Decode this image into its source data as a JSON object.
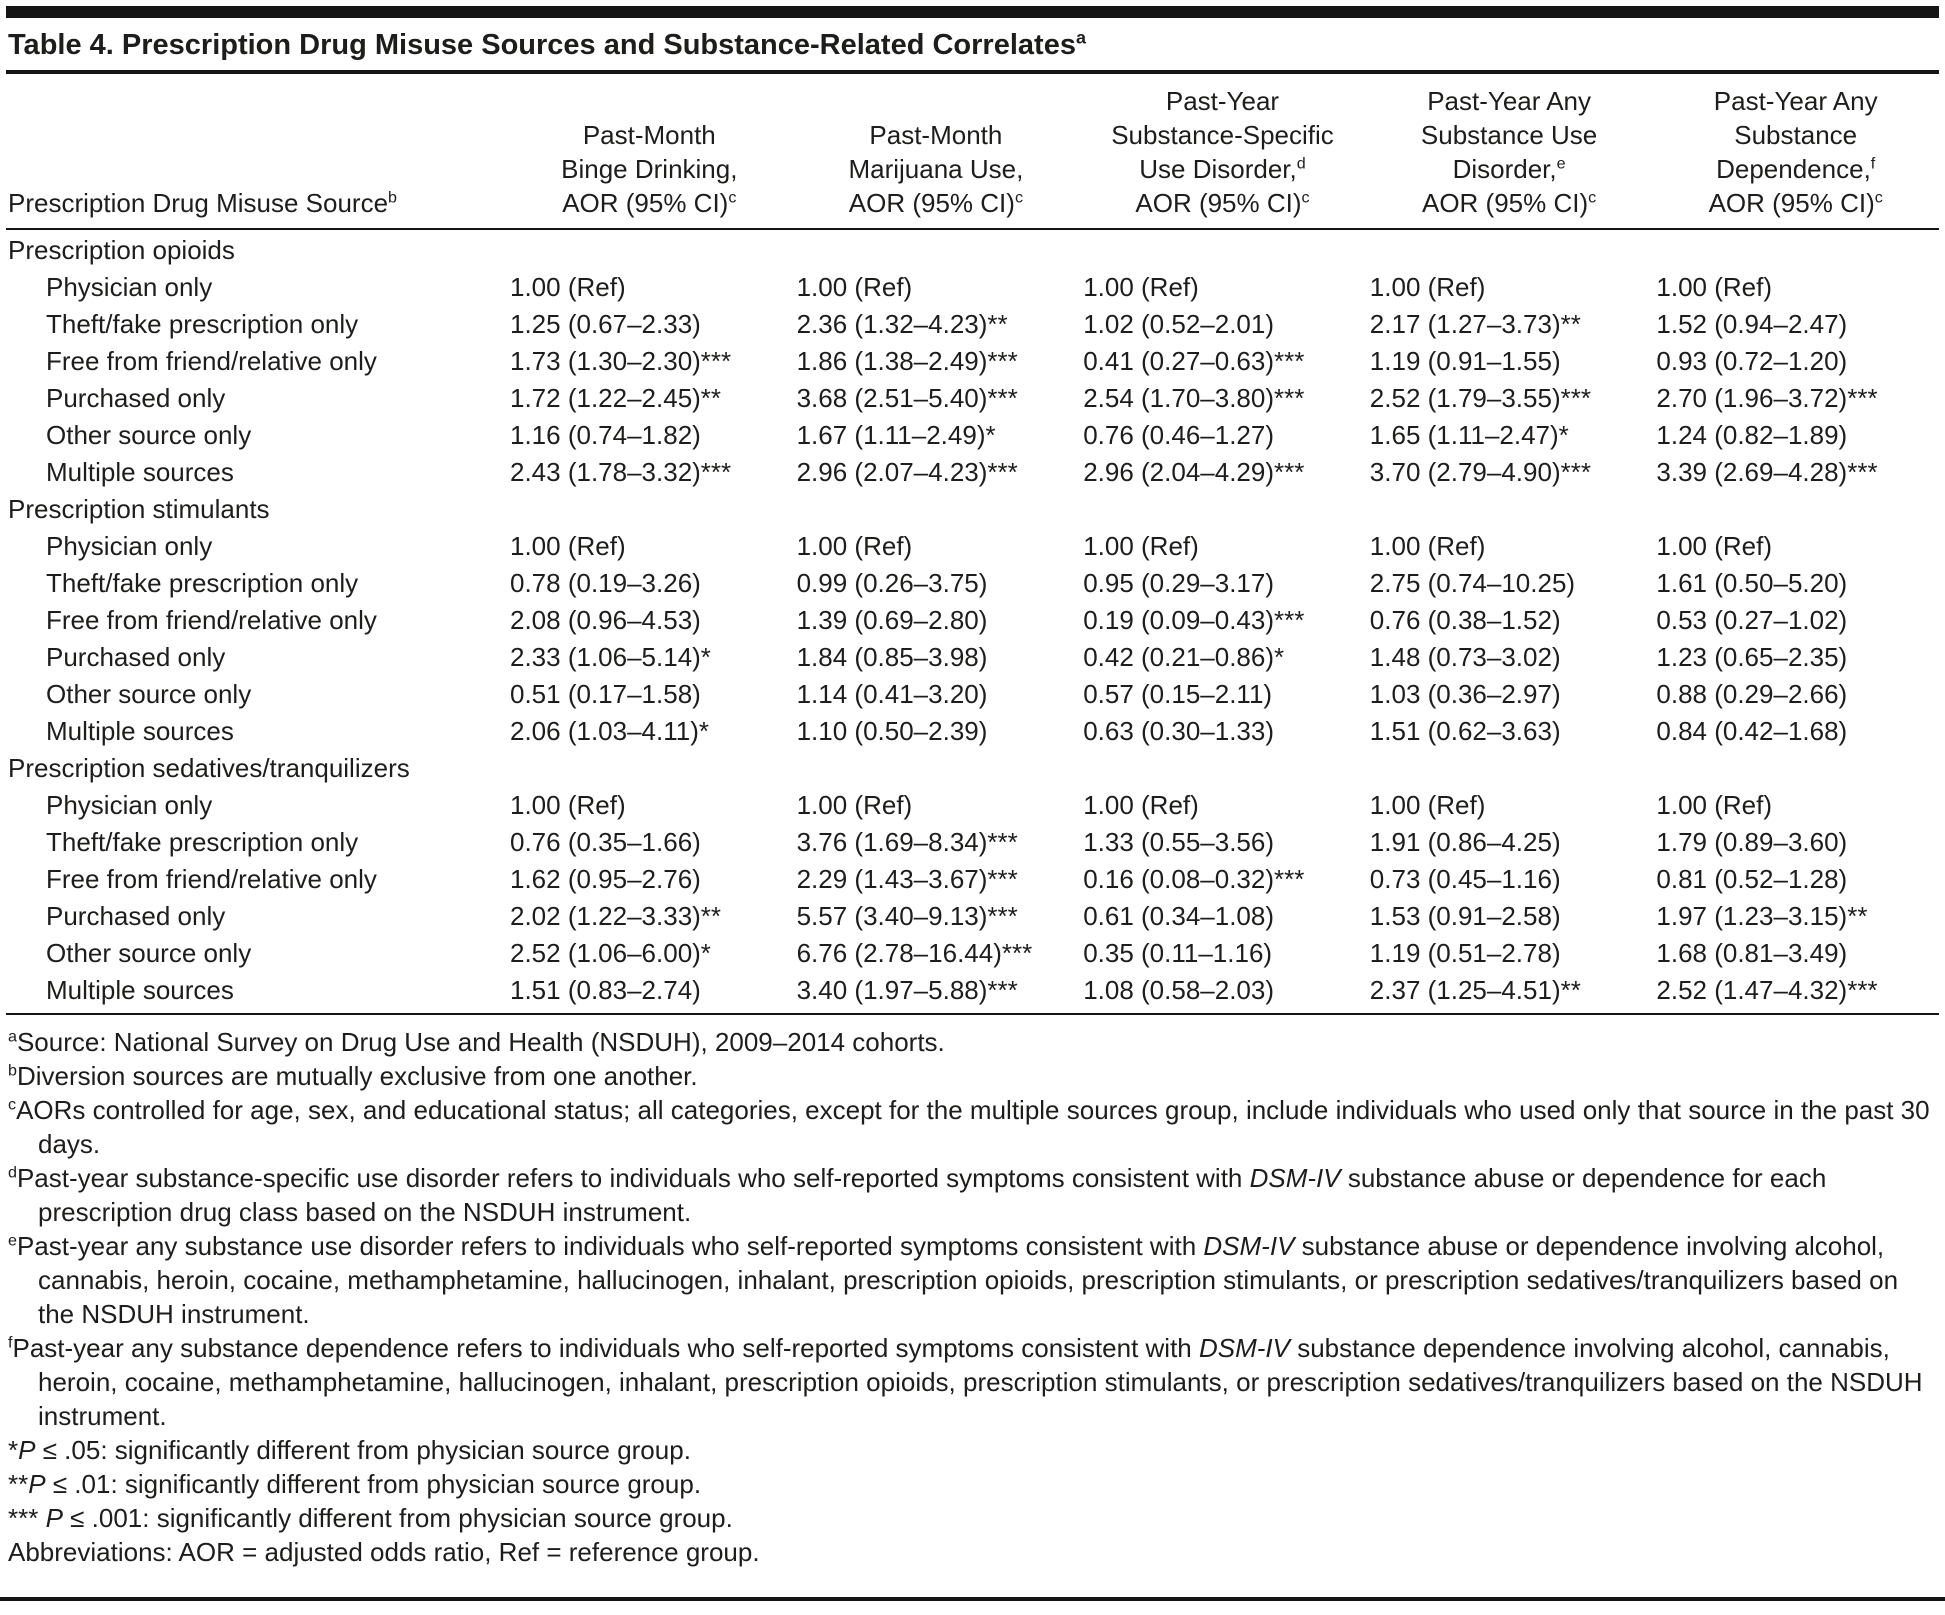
{
  "title": {
    "text": "Table 4. Prescription Drug Misuse Sources and Substance-Related Correlates",
    "sup": "a"
  },
  "header": {
    "row_label": {
      "text": "Prescription Drug Misuse Source",
      "sup": "b"
    },
    "columns": [
      {
        "lines": [
          {
            "t": "Past-Month"
          },
          {
            "t": "Binge Drinking,"
          },
          {
            "t": "AOR (95% CI)",
            "s": "c"
          }
        ]
      },
      {
        "lines": [
          {
            "t": "Past-Month"
          },
          {
            "t": "Marijuana Use,"
          },
          {
            "t": "AOR (95% CI)",
            "s": "c"
          }
        ]
      },
      {
        "lines": [
          {
            "t": "Past-Year"
          },
          {
            "t": "Substance-Specific"
          },
          {
            "t": "Use Disorder,",
            "s": "d"
          },
          {
            "t": "AOR (95% CI)",
            "s": "c"
          }
        ]
      },
      {
        "lines": [
          {
            "t": "Past-Year Any"
          },
          {
            "t": "Substance Use"
          },
          {
            "t": "Disorder,",
            "s": "e"
          },
          {
            "t": "AOR (95% CI)",
            "s": "c"
          }
        ]
      },
      {
        "lines": [
          {
            "t": "Past-Year Any"
          },
          {
            "t": "Substance"
          },
          {
            "t": "Dependence,",
            "s": "f"
          },
          {
            "t": "AOR (95% CI)",
            "s": "c"
          }
        ]
      }
    ]
  },
  "sections": [
    {
      "label": "Prescription opioids",
      "rows": [
        {
          "label": "Physician only",
          "values": [
            "1.00 (Ref)",
            "1.00 (Ref)",
            "1.00 (Ref)",
            "1.00 (Ref)",
            "1.00 (Ref)"
          ]
        },
        {
          "label": "Theft/fake prescription only",
          "values": [
            "1.25 (0.67–2.33)",
            "2.36 (1.32–4.23)**",
            "1.02 (0.52–2.01)",
            "2.17 (1.27–3.73)**",
            "1.52 (0.94–2.47)"
          ]
        },
        {
          "label": "Free from friend/relative only",
          "values": [
            "1.73 (1.30–2.30)***",
            "1.86 (1.38–2.49)***",
            "0.41 (0.27–0.63)***",
            "1.19 (0.91–1.55)",
            "0.93 (0.72–1.20)"
          ]
        },
        {
          "label": "Purchased only",
          "values": [
            "1.72 (1.22–2.45)**",
            "3.68 (2.51–5.40)***",
            "2.54 (1.70–3.80)***",
            "2.52 (1.79–3.55)***",
            "2.70 (1.96–3.72)***"
          ]
        },
        {
          "label": "Other source only",
          "values": [
            "1.16 (0.74–1.82)",
            "1.67 (1.11–2.49)*",
            "0.76 (0.46–1.27)",
            "1.65 (1.11–2.47)*",
            "1.24 (0.82–1.89)"
          ]
        },
        {
          "label": "Multiple sources",
          "values": [
            "2.43 (1.78–3.32)***",
            "2.96 (2.07–4.23)***",
            "2.96 (2.04–4.29)***",
            "3.70 (2.79–4.90)***",
            "3.39 (2.69–4.28)***"
          ]
        }
      ]
    },
    {
      "label": "Prescription stimulants",
      "rows": [
        {
          "label": "Physician only",
          "values": [
            "1.00 (Ref)",
            "1.00 (Ref)",
            "1.00 (Ref)",
            "1.00 (Ref)",
            "1.00 (Ref)"
          ]
        },
        {
          "label": "Theft/fake prescription only",
          "values": [
            "0.78 (0.19–3.26)",
            "0.99 (0.26–3.75)",
            "0.95 (0.29–3.17)",
            "2.75 (0.74–10.25)",
            "1.61 (0.50–5.20)"
          ]
        },
        {
          "label": "Free from friend/relative only",
          "values": [
            "2.08 (0.96–4.53)",
            "1.39 (0.69–2.80)",
            "0.19 (0.09–0.43)***",
            "0.76 (0.38–1.52)",
            "0.53 (0.27–1.02)"
          ]
        },
        {
          "label": "Purchased only",
          "values": [
            "2.33 (1.06–5.14)*",
            "1.84 (0.85–3.98)",
            "0.42 (0.21–0.86)*",
            "1.48 (0.73–3.02)",
            "1.23 (0.65–2.35)"
          ]
        },
        {
          "label": "Other source only",
          "values": [
            "0.51 (0.17–1.58)",
            "1.14 (0.41–3.20)",
            "0.57 (0.15–2.11)",
            "1.03 (0.36–2.97)",
            "0.88 (0.29–2.66)"
          ]
        },
        {
          "label": "Multiple sources",
          "values": [
            "2.06 (1.03–4.11)*",
            "1.10 (0.50–2.39)",
            "0.63 (0.30–1.33)",
            "1.51 (0.62–3.63)",
            "0.84 (0.42–1.68)"
          ]
        }
      ]
    },
    {
      "label": "Prescription sedatives/tranquilizers",
      "rows": [
        {
          "label": "Physician only",
          "values": [
            "1.00 (Ref)",
            "1.00 (Ref)",
            "1.00 (Ref)",
            "1.00 (Ref)",
            "1.00 (Ref)"
          ]
        },
        {
          "label": "Theft/fake prescription only",
          "values": [
            "0.76 (0.35–1.66)",
            "3.76 (1.69–8.34)***",
            "1.33 (0.55–3.56)",
            "1.91 (0.86–4.25)",
            "1.79 (0.89–3.60)"
          ]
        },
        {
          "label": "Free from friend/relative only",
          "values": [
            "1.62 (0.95–2.76)",
            "2.29 (1.43–3.67)***",
            "0.16 (0.08–0.32)***",
            "0.73 (0.45–1.16)",
            "0.81 (0.52–1.28)"
          ]
        },
        {
          "label": "Purchased only",
          "values": [
            "2.02 (1.22–3.33)**",
            "5.57 (3.40–9.13)***",
            "0.61 (0.34–1.08)",
            "1.53 (0.91–2.58)",
            "1.97 (1.23–3.15)**"
          ]
        },
        {
          "label": "Other source only",
          "values": [
            "2.52 (1.06–6.00)*",
            "6.76 (2.78–16.44)***",
            "0.35 (0.11–1.16)",
            "1.19 (0.51–2.78)",
            "1.68 (0.81–3.49)"
          ]
        },
        {
          "label": "Multiple sources",
          "values": [
            "1.51 (0.83–2.74)",
            "3.40 (1.97–5.88)***",
            "1.08 (0.58–2.03)",
            "2.37 (1.25–4.51)**",
            "2.52 (1.47–4.32)***"
          ]
        }
      ]
    }
  ],
  "footnotes": [
    {
      "sup": "a",
      "parts": [
        {
          "t": "Source: National Survey on Drug Use and Health (NSDUH), 2009–2014 cohorts."
        }
      ]
    },
    {
      "sup": "b",
      "parts": [
        {
          "t": "Diversion sources are mutually exclusive from one another."
        }
      ]
    },
    {
      "sup": "c",
      "parts": [
        {
          "t": "AORs controlled for age, sex, and educational status; all categories, except for the multiple sources group, include individuals who used only that source in the past 30 days."
        }
      ]
    },
    {
      "sup": "d",
      "parts": [
        {
          "t": "Past-year substance-specific use disorder refers to individuals who self-reported symptoms consistent with "
        },
        {
          "t": "DSM-IV",
          "i": true
        },
        {
          "t": " substance abuse or dependence for each prescription drug class based on the NSDUH instrument."
        }
      ]
    },
    {
      "sup": "e",
      "parts": [
        {
          "t": "Past-year any substance use disorder refers to individuals who self-reported symptoms consistent with "
        },
        {
          "t": "DSM-IV",
          "i": true
        },
        {
          "t": " substance abuse or dependence involving alcohol, cannabis, heroin, cocaine, methamphetamine, hallucinogen, inhalant, prescription opioids, prescription stimulants, or prescription sedatives/tranquilizers based on the NSDUH instrument."
        }
      ]
    },
    {
      "sup": "f",
      "parts": [
        {
          "t": "Past-year any substance dependence refers to individuals who self-reported symptoms consistent with "
        },
        {
          "t": "DSM-IV",
          "i": true
        },
        {
          "t": " substance dependence involving alcohol, cannabis, heroin, cocaine, methamphetamine, hallucinogen, inhalant, prescription opioids, prescription stimulants, or prescription sedatives/tranquilizers based on the NSDUH instrument."
        }
      ]
    },
    {
      "parts": [
        {
          "t": "*"
        },
        {
          "t": "P",
          "i": true
        },
        {
          "t": " ≤ .05: significantly different from physician source group."
        }
      ]
    },
    {
      "parts": [
        {
          "t": "**"
        },
        {
          "t": "P",
          "i": true
        },
        {
          "t": " ≤ .01: significantly different from physician source group."
        }
      ]
    },
    {
      "parts": [
        {
          "t": "*** "
        },
        {
          "t": "P",
          "i": true
        },
        {
          "t": " ≤ .001: significantly different from physician source group."
        }
      ]
    },
    {
      "parts": [
        {
          "t": "Abbreviations: AOR = adjusted odds ratio, Ref = reference group."
        }
      ]
    }
  ]
}
